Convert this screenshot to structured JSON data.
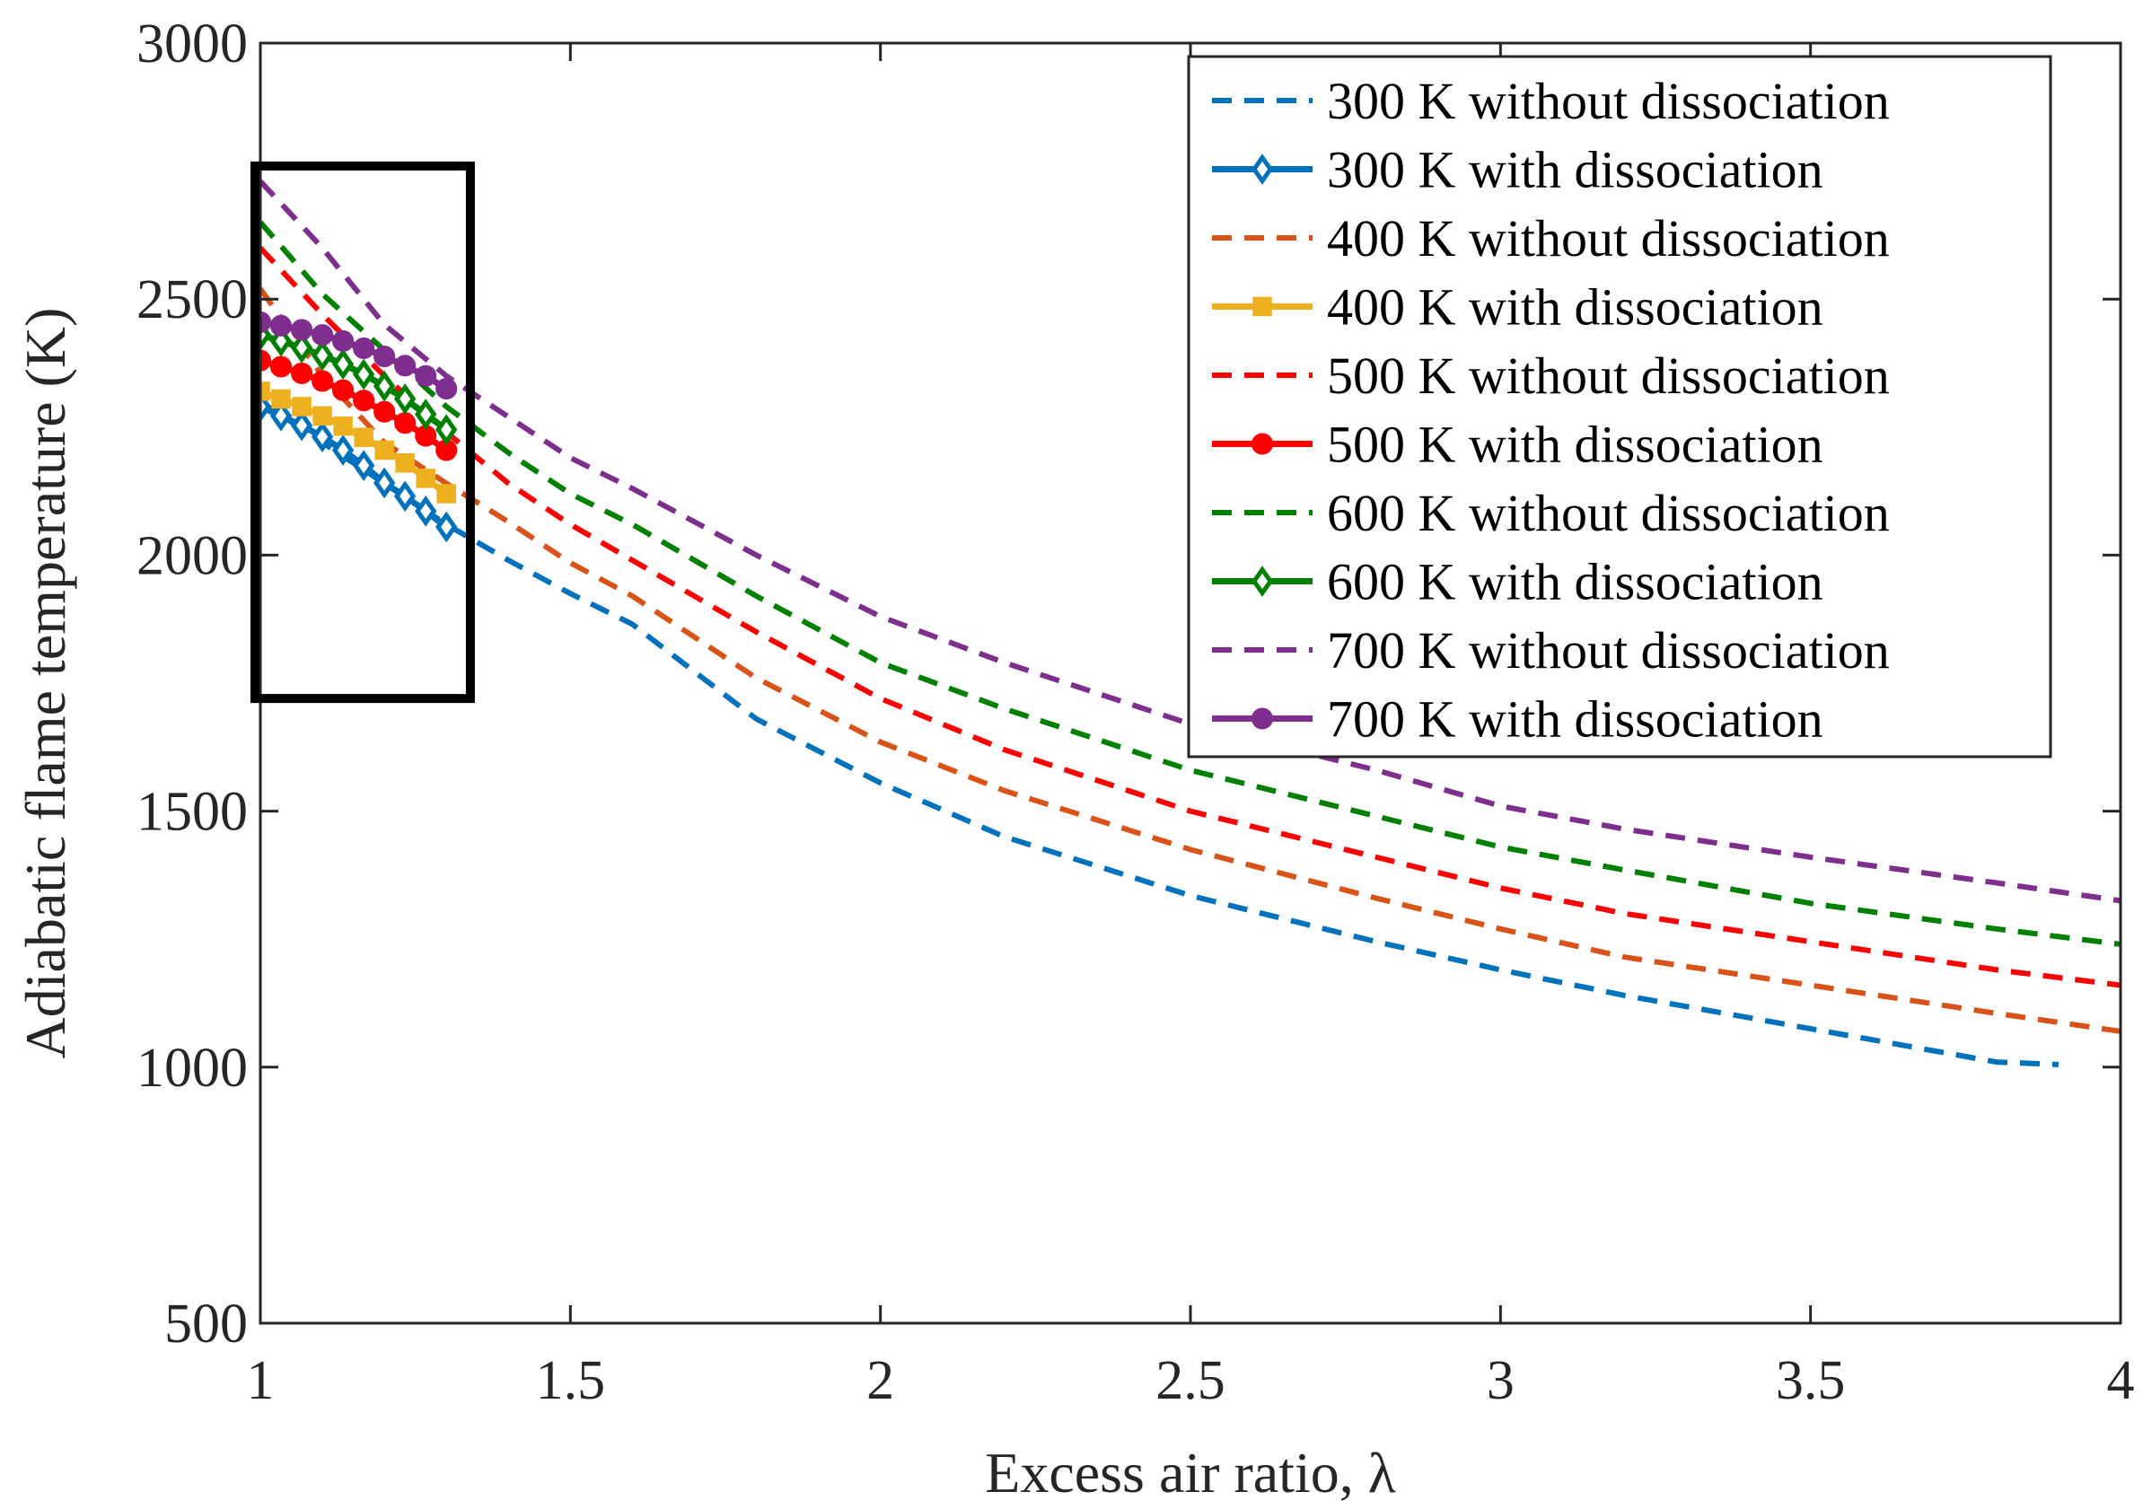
{
  "chart_data": {
    "type": "line",
    "title": "",
    "xlabel": "Excess air ratio, λ",
    "ylabel": "Adiabatic flame temperature (K)",
    "xlim": [
      1,
      4
    ],
    "ylim": [
      500,
      3000
    ],
    "xticks": [
      1,
      1.5,
      2,
      2.5,
      3,
      3.5,
      4
    ],
    "yticks": [
      500,
      1000,
      1500,
      2000,
      2500,
      3000
    ],
    "xtick_labels": [
      "1",
      "1.5",
      "2",
      "2.5",
      "3",
      "3.5",
      "4"
    ],
    "ytick_labels": [
      "500",
      "1000",
      "1500",
      "2000",
      "2500",
      "3000"
    ],
    "grid": false,
    "legend_position": "top-right",
    "highlight_box": {
      "x_range": [
        1.0,
        1.33
      ],
      "y_range": [
        1720,
        2760
      ]
    },
    "series": [
      {
        "name": "300 K without dissociation",
        "color": "#0072BD",
        "style": "dashed",
        "marker": "none",
        "x": [
          1.0,
          1.1,
          1.2,
          1.3,
          1.4,
          1.5,
          1.6,
          1.8,
          2.0,
          2.2,
          2.5,
          2.8,
          3.0,
          3.2,
          3.5,
          3.8,
          3.9
        ],
        "y": [
          2300,
          2220,
          2140,
          2060,
          1990,
          1925,
          1865,
          1680,
          1555,
          1450,
          1335,
          1245,
          1190,
          1140,
          1075,
          1010,
          1005
        ]
      },
      {
        "name": "300 K with dissociation",
        "color": "#0072BD",
        "style": "solid",
        "marker": "diamond",
        "x": [
          1.0,
          1.0333,
          1.0667,
          1.1,
          1.1333,
          1.1667,
          1.2,
          1.2333,
          1.2667,
          1.3
        ],
        "y": [
          2290,
          2272,
          2253,
          2231,
          2205,
          2175,
          2141,
          2115,
          2086,
          2055
        ]
      },
      {
        "name": "400 K without dissociation",
        "color": "#D95319",
        "style": "dashed",
        "marker": "none",
        "x": [
          1.0,
          1.1,
          1.2,
          1.3,
          1.4,
          1.5,
          1.6,
          1.8,
          2.0,
          2.2,
          2.5,
          2.8,
          3.0,
          3.2,
          3.5,
          3.8,
          4.0
        ],
        "y": [
          2520,
          2350,
          2220,
          2140,
          2065,
          1985,
          1920,
          1760,
          1635,
          1540,
          1425,
          1330,
          1270,
          1215,
          1160,
          1105,
          1070
        ]
      },
      {
        "name": "400 K with dissociation",
        "color": "#EDB120",
        "style": "solid",
        "marker": "square",
        "x": [
          1.0,
          1.0333,
          1.0667,
          1.1,
          1.1333,
          1.1667,
          1.2,
          1.2333,
          1.2667,
          1.3
        ],
        "y": [
          2320,
          2305,
          2290,
          2272,
          2252,
          2230,
          2205,
          2180,
          2150,
          2120
        ]
      },
      {
        "name": "500 K without dissociation",
        "color": "#ff0000",
        "style": "dashed",
        "marker": "none",
        "x": [
          1.0,
          1.1,
          1.2,
          1.3,
          1.4,
          1.5,
          1.6,
          1.8,
          2.0,
          2.2,
          2.5,
          2.8,
          3.0,
          3.2,
          3.5,
          3.8,
          4.0
        ],
        "y": [
          2600,
          2470,
          2350,
          2240,
          2140,
          2060,
          1990,
          1850,
          1720,
          1620,
          1500,
          1410,
          1350,
          1300,
          1245,
          1190,
          1160
        ]
      },
      {
        "name": "500 K with dissociation",
        "color": "#ff0000",
        "style": "solid",
        "marker": "circle",
        "x": [
          1.0,
          1.0333,
          1.0667,
          1.1,
          1.1333,
          1.1667,
          1.2,
          1.2333,
          1.2667,
          1.3
        ],
        "y": [
          2380,
          2368,
          2355,
          2340,
          2322,
          2302,
          2280,
          2258,
          2233,
          2205
        ]
      },
      {
        "name": "600 K without dissociation",
        "color": "#008000",
        "style": "dashed",
        "marker": "none",
        "x": [
          1.0,
          1.1,
          1.2,
          1.3,
          1.4,
          1.5,
          1.6,
          1.8,
          2.0,
          2.2,
          2.5,
          2.8,
          3.0,
          3.2,
          3.5,
          3.8,
          4.0
        ],
        "y": [
          2650,
          2510,
          2400,
          2290,
          2200,
          2120,
          2060,
          1920,
          1790,
          1700,
          1580,
          1490,
          1430,
          1385,
          1320,
          1270,
          1240
        ]
      },
      {
        "name": "600 K with dissociation",
        "color": "#008000",
        "style": "solid",
        "marker": "diamond",
        "x": [
          1.0,
          1.0333,
          1.0667,
          1.1,
          1.1333,
          1.1667,
          1.2,
          1.2333,
          1.2667,
          1.3
        ],
        "y": [
          2430,
          2418,
          2405,
          2390,
          2373,
          2353,
          2330,
          2305,
          2275,
          2245
        ]
      },
      {
        "name": "700 K without dissociation",
        "color": "#7E2F8E",
        "style": "dashed",
        "marker": "none",
        "x": [
          1.0,
          1.1,
          1.2,
          1.3,
          1.4,
          1.5,
          1.6,
          1.8,
          2.0,
          2.2,
          2.5,
          2.8,
          3.0,
          3.2,
          3.5,
          3.8,
          4.0
        ],
        "y": [
          2730,
          2600,
          2450,
          2350,
          2270,
          2190,
          2130,
          2000,
          1880,
          1790,
          1670,
          1580,
          1510,
          1465,
          1410,
          1360,
          1325
        ]
      },
      {
        "name": "700 K with dissociation",
        "color": "#7E2F8E",
        "style": "solid",
        "marker": "circle",
        "x": [
          1.0,
          1.0333,
          1.0667,
          1.1,
          1.1333,
          1.1667,
          1.2,
          1.2333,
          1.2667,
          1.3
        ],
        "y": [
          2455,
          2448,
          2440,
          2430,
          2418,
          2404,
          2388,
          2370,
          2350,
          2325
        ]
      }
    ]
  }
}
